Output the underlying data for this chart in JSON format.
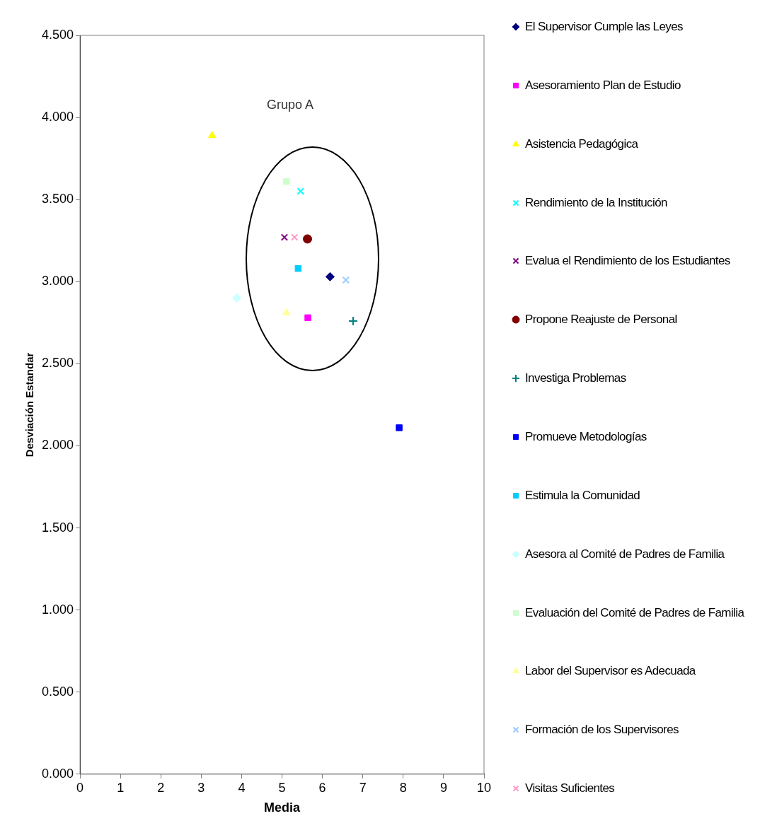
{
  "chart_data": {
    "type": "scatter",
    "xlabel": "Media",
    "ylabel": "Desviación Estandar",
    "annotations": [
      "Grupo A"
    ],
    "xlim": [
      0,
      10
    ],
    "xticks": [
      0,
      1,
      2,
      3,
      4,
      5,
      6,
      7,
      8,
      9,
      10
    ],
    "ylim": [
      0,
      4.5
    ],
    "yticks": [
      {
        "value": 0,
        "label": "0.000"
      },
      {
        "value": 0.5,
        "label": "0.500"
      },
      {
        "value": 1,
        "label": "1.000"
      },
      {
        "value": 1.5,
        "label": "1.500"
      },
      {
        "value": 2,
        "label": "2.000"
      },
      {
        "value": 2.5,
        "label": "2.500"
      },
      {
        "value": 3,
        "label": "3.000"
      },
      {
        "value": 3.5,
        "label": "3.500"
      },
      {
        "value": 4,
        "label": "4.000"
      },
      {
        "value": 4.5,
        "label": "4.500"
      }
    ],
    "grid": false,
    "legend": "right",
    "series": [
      {
        "name": "El Supervisor Cumple las Leyes",
        "color": "#000080",
        "marker": "diamond",
        "x": [
          6.19
        ],
        "values": [
          3.03
        ]
      },
      {
        "name": "Asesoramiento Plan de Estudio",
        "color": "#ff00ff",
        "marker": "square",
        "x": [
          5.64
        ],
        "values": [
          2.78
        ]
      },
      {
        "name": "Asistencia Pedagógica",
        "color": "#ffff00",
        "marker": "triangle",
        "x": [
          3.27
        ],
        "values": [
          3.89
        ]
      },
      {
        "name": "Rendimiento de la Institución",
        "color": "#00ffff",
        "marker": "cross",
        "x": [
          5.46
        ],
        "values": [
          3.55
        ]
      },
      {
        "name": "Evalua el Rendimiento de los Estudiantes",
        "color": "#800080",
        "marker": "cross",
        "x": [
          5.06
        ],
        "values": [
          3.27
        ]
      },
      {
        "name": "Propone Reajuste de Personal",
        "color": "#800000",
        "marker": "circle",
        "x": [
          5.63
        ],
        "values": [
          3.26
        ]
      },
      {
        "name": "Investiga Problemas",
        "color": "#008080",
        "marker": "plus",
        "x": [
          6.76
        ],
        "values": [
          2.76
        ]
      },
      {
        "name": "Promueve Metodologías",
        "color": "#0000ff",
        "marker": "square",
        "x": [
          7.9
        ],
        "values": [
          2.11
        ]
      },
      {
        "name": "Estimula la Comunidad",
        "color": "#00ccff",
        "marker": "square",
        "x": [
          5.4
        ],
        "values": [
          3.08
        ]
      },
      {
        "name": "Asesora al Comité de Padres de Familia",
        "color": "#ccffff",
        "marker": "diamond",
        "x": [
          3.88
        ],
        "values": [
          2.9
        ]
      },
      {
        "name": "Evaluación del Comité de Padres de Familia",
        "color": "#ccffcc",
        "marker": "square",
        "x": [
          5.11
        ],
        "values": [
          3.61
        ]
      },
      {
        "name": "Labor del Supervisor es Adecuada",
        "color": "#ffff99",
        "marker": "triangle",
        "x": [
          5.11
        ],
        "values": [
          2.81
        ]
      },
      {
        "name": "Formación de los Supervisores",
        "color": "#99ccff",
        "marker": "cross",
        "x": [
          6.58
        ],
        "values": [
          3.01
        ]
      },
      {
        "name": "Visitas Suficientes",
        "color": "#ff99cc",
        "marker": "cross",
        "x": [
          5.31
        ],
        "values": [
          3.27
        ]
      }
    ]
  }
}
